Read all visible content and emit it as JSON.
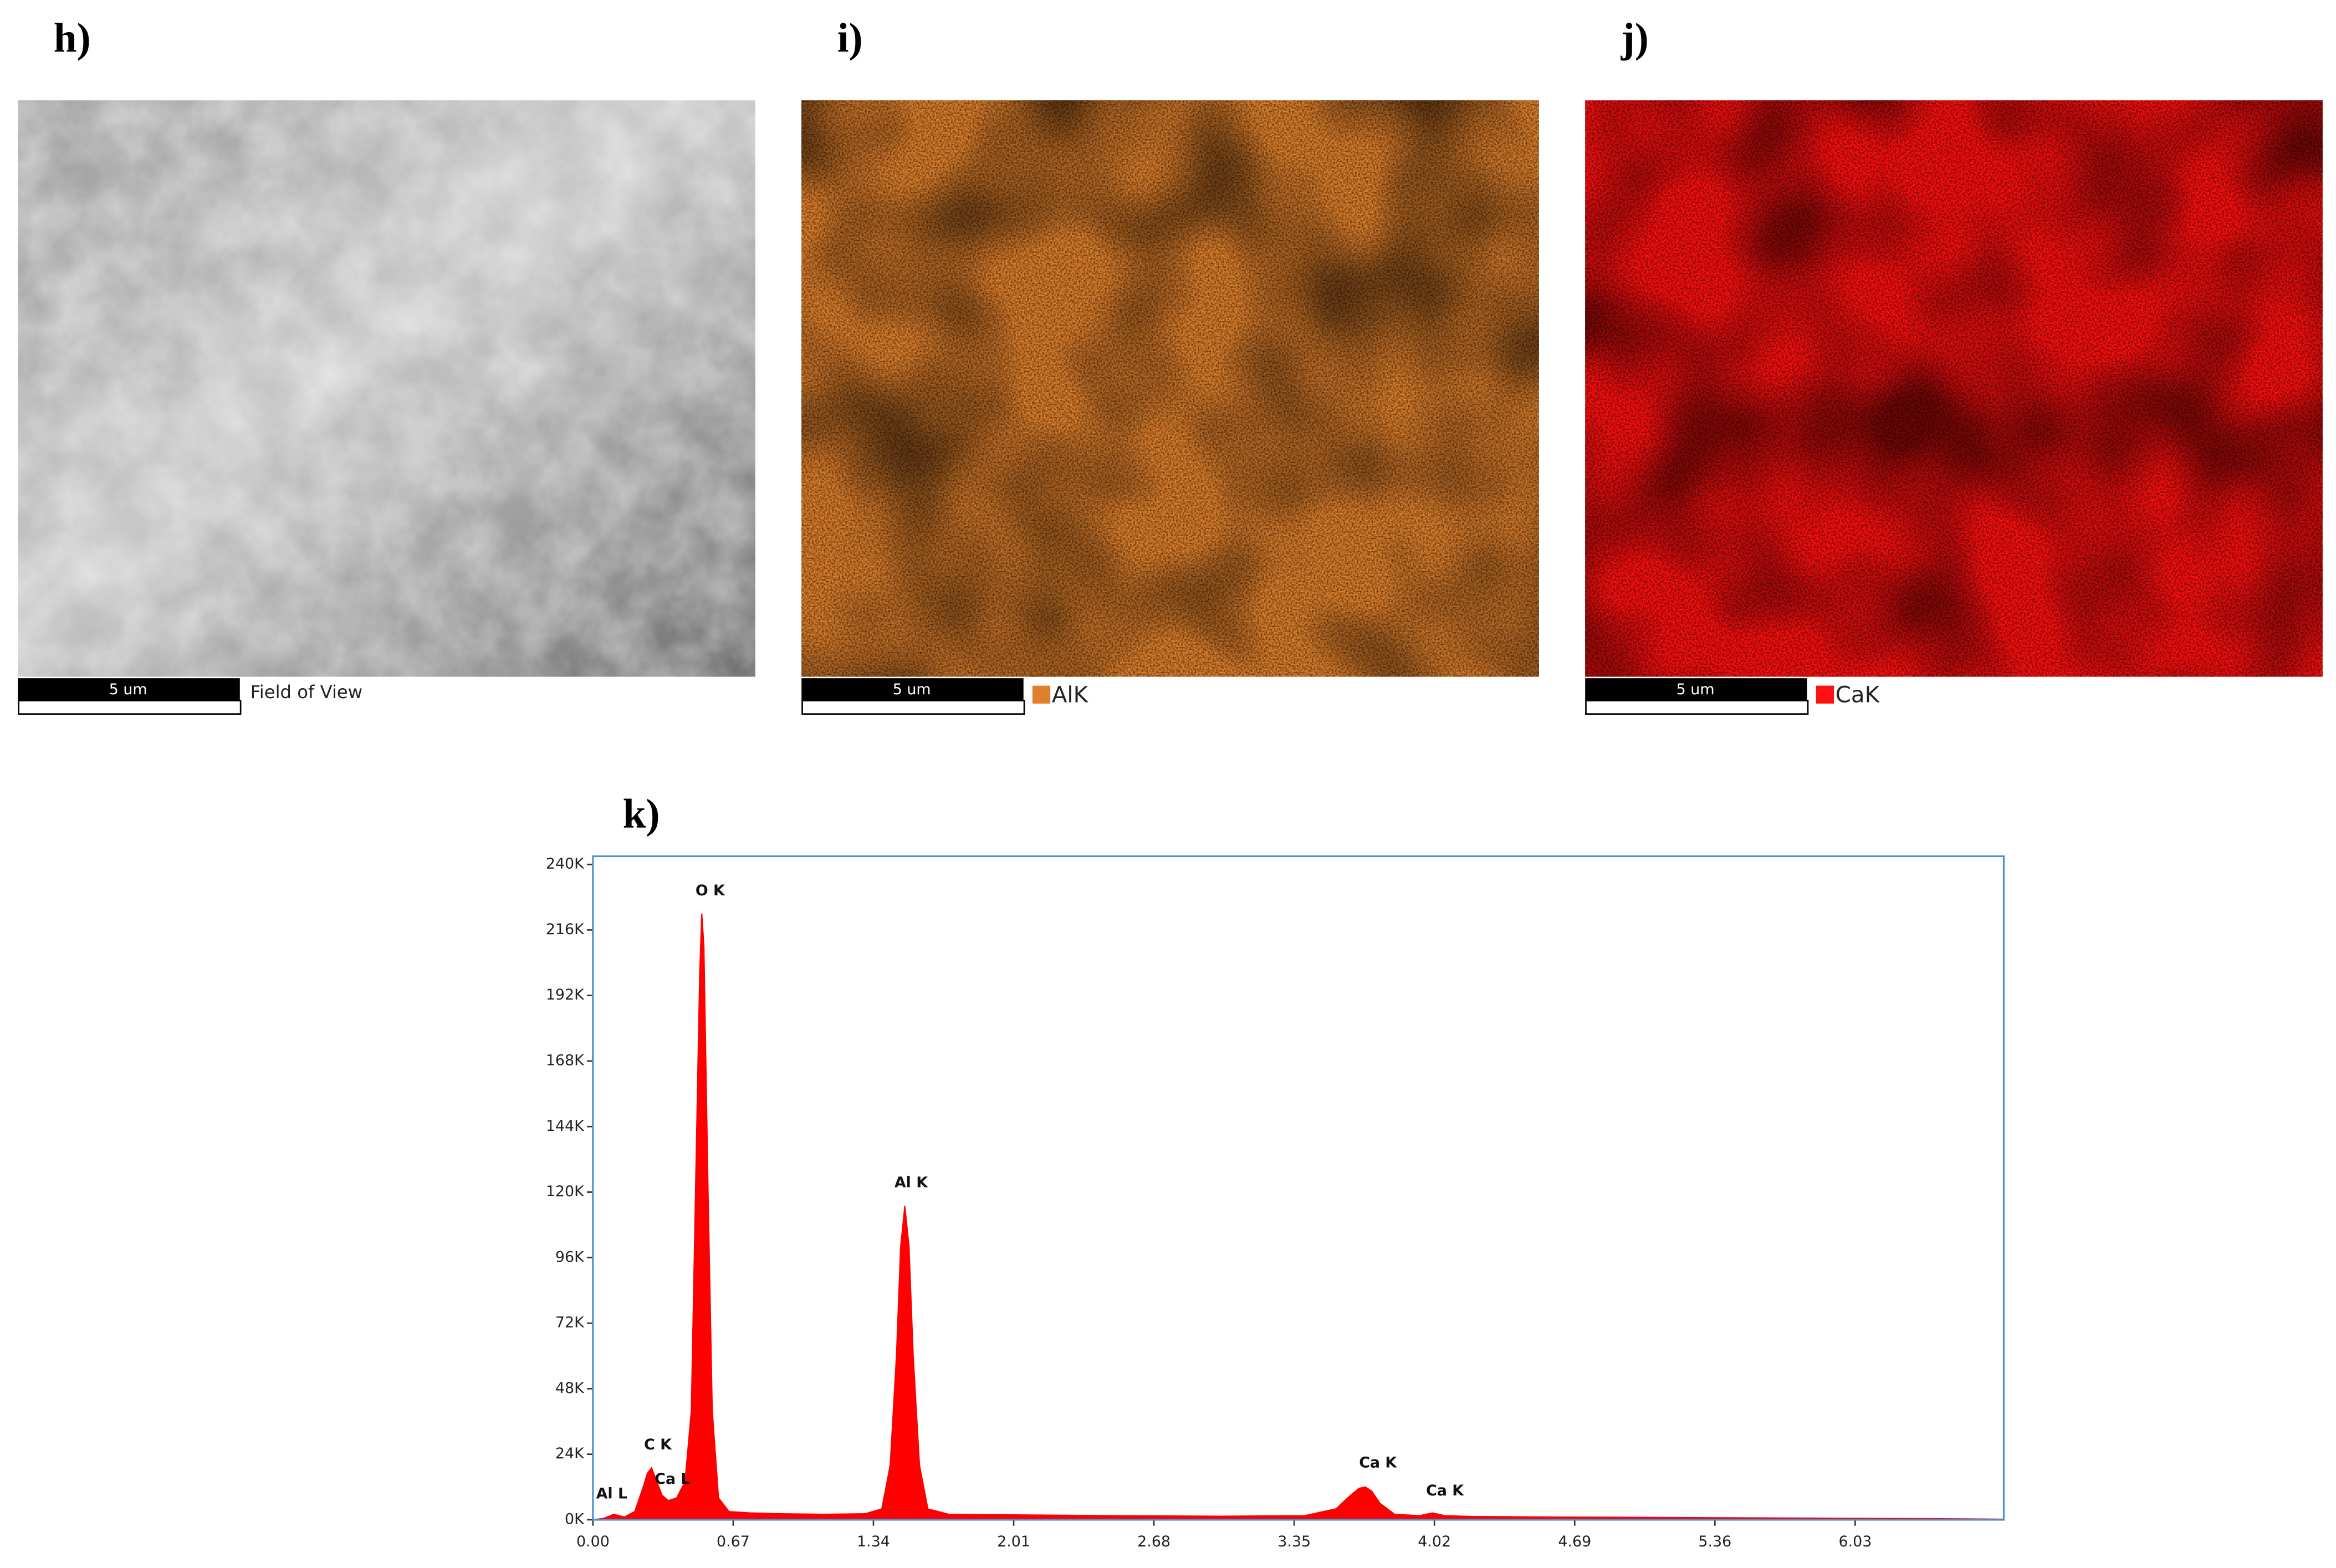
{
  "panels": [
    {
      "label": "h)",
      "scale_bar": "5 um",
      "legend": "Field of View"
    },
    {
      "label": "i)",
      "scale_bar": "5 um",
      "legend": "AlK",
      "color": "#e0802c"
    },
    {
      "label": "j)",
      "scale_bar": "5 um",
      "legend": "CaK",
      "color": "#ff1010"
    }
  ],
  "chart_data": {
    "type": "area",
    "title": "k)",
    "color": "#ff0000",
    "x": [
      0.0,
      0.05,
      0.1,
      0.15,
      0.2,
      0.24,
      0.26,
      0.28,
      0.3,
      0.33,
      0.36,
      0.4,
      0.44,
      0.47,
      0.49,
      0.51,
      0.52,
      0.53,
      0.55,
      0.57,
      0.6,
      0.65,
      0.75,
      0.9,
      1.1,
      1.3,
      1.38,
      1.42,
      1.45,
      1.47,
      1.49,
      1.51,
      1.53,
      1.56,
      1.6,
      1.7,
      2.0,
      2.5,
      3.0,
      3.4,
      3.55,
      3.62,
      3.66,
      3.69,
      3.72,
      3.76,
      3.83,
      3.95,
      4.01,
      4.07,
      4.2,
      4.6,
      5.2,
      5.8,
      6.4,
      6.74
    ],
    "values": [
      0,
      500,
      2000,
      1000,
      3000,
      12000,
      17000,
      19000,
      15000,
      9000,
      7000,
      8000,
      14000,
      40000,
      120000,
      200000,
      222000,
      210000,
      120000,
      40000,
      8000,
      3000,
      2500,
      2200,
      2000,
      2200,
      4000,
      20000,
      60000,
      100000,
      115000,
      100000,
      60000,
      20000,
      4000,
      2000,
      1800,
      1500,
      1300,
      1500,
      4000,
      9000,
      11500,
      12000,
      10500,
      6000,
      2000,
      1500,
      2500,
      1500,
      1200,
      1000,
      800,
      600,
      400,
      200
    ],
    "xlim": [
      0,
      6.74
    ],
    "ylim": [
      0,
      243000
    ],
    "xticks": [
      {
        "value": 0,
        "label": "0.00"
      },
      {
        "value": 0.67,
        "label": "0.67"
      },
      {
        "value": 1.34,
        "label": "1.34"
      },
      {
        "value": 2.01,
        "label": "2.01"
      },
      {
        "value": 2.68,
        "label": "2.68"
      },
      {
        "value": 3.35,
        "label": "3.35"
      },
      {
        "value": 4.02,
        "label": "4.02"
      },
      {
        "value": 4.69,
        "label": "4.69"
      },
      {
        "value": 5.36,
        "label": "5.36"
      },
      {
        "value": 6.03,
        "label": "6.03"
      }
    ],
    "yticks": [
      {
        "value": 0,
        "label": "0K"
      },
      {
        "value": 24000,
        "label": "24K"
      },
      {
        "value": 48000,
        "label": "48K"
      },
      {
        "value": 72000,
        "label": "72K"
      },
      {
        "value": 96000,
        "label": "96K"
      },
      {
        "value": 120000,
        "label": "120K"
      },
      {
        "value": 144000,
        "label": "144K"
      },
      {
        "value": 168000,
        "label": "168K"
      },
      {
        "value": 192000,
        "label": "192K"
      },
      {
        "value": 216000,
        "label": "216K"
      },
      {
        "value": 240000,
        "label": "240K"
      }
    ],
    "annotations": [
      {
        "text": "Al L",
        "x": 0.09,
        "y": 9300
      },
      {
        "text": "C  K",
        "x": 0.31,
        "y": 27300
      },
      {
        "text": "Ca L",
        "x": 0.38,
        "y": 14700
      },
      {
        "text": "O  K",
        "x": 0.56,
        "y": 230200
      },
      {
        "text": "Al K",
        "x": 1.52,
        "y": 123300
      },
      {
        "text": "Ca K",
        "x": 3.75,
        "y": 20700
      },
      {
        "text": "Ca K",
        "x": 4.07,
        "y": 10400
      }
    ]
  }
}
